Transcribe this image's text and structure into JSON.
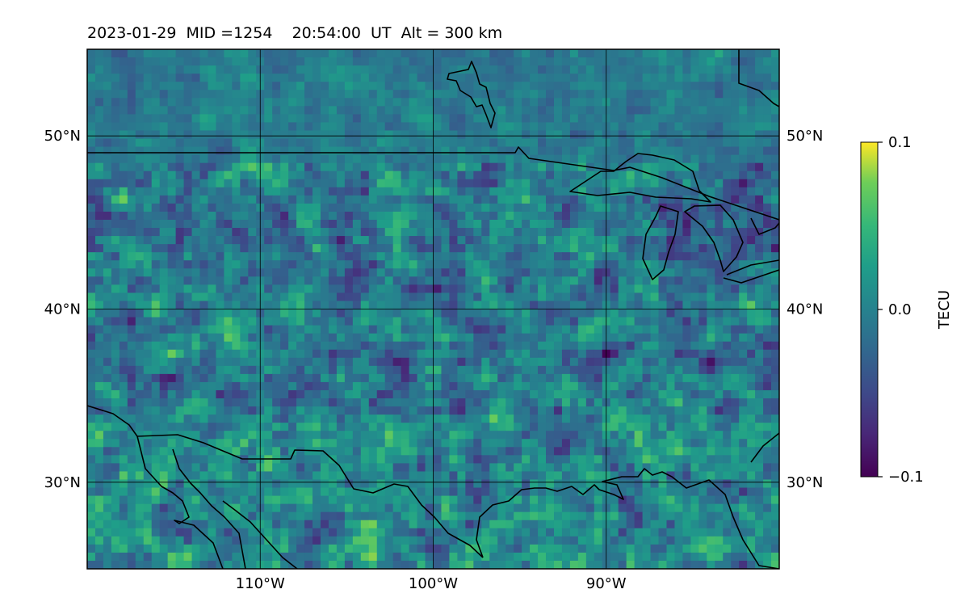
{
  "title": "2023-01-29  MID =1254    20:54:00  UT  Alt = 300 km",
  "chart_data": {
    "type": "heatmap",
    "x_extent_lon": [
      -120,
      -80
    ],
    "y_extent_lat": [
      25,
      55
    ],
    "field": {
      "min": -0.1,
      "max": 0.1,
      "mean": 0.0,
      "colormap": "viridis"
    },
    "x_ticks": [
      {
        "lon": -110,
        "label": "110°W"
      },
      {
        "lon": -100,
        "label": "100°W"
      },
      {
        "lon": -90,
        "label": "90°W"
      }
    ],
    "y_ticks": [
      {
        "lat": 50,
        "label": "50°N"
      },
      {
        "lat": 40,
        "label": "40°N"
      },
      {
        "lat": 30,
        "label": "30°N"
      }
    ],
    "gridlines": true,
    "colorbar": {
      "label": "TECU",
      "ticks": [
        {
          "value": 0.1,
          "label": "0.1"
        },
        {
          "value": 0.0,
          "label": "0.0"
        },
        {
          "value": -0.1,
          "label": "−0.1"
        }
      ]
    }
  }
}
